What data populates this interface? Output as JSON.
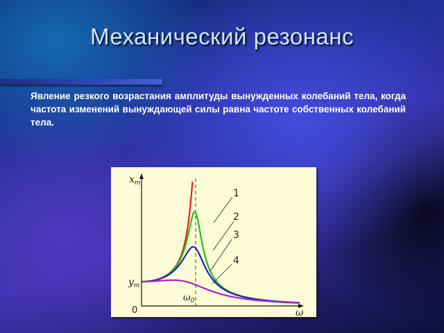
{
  "slide": {
    "title": "Механический резонанс",
    "definition": "Явление резкого возрастания амплитуды вынужденных колебаний тела, когда частота изменений  вынуждающей силы равна частоте собственных колебаний тела."
  },
  "chart_data": {
    "type": "line",
    "y_axis_label": "x",
    "y_axis_label_subscript": "m",
    "x_axis_label": "ω",
    "origin_label": "0",
    "y_marker_label": "y",
    "y_marker_label_subscript": "m",
    "resonance_label": "ω",
    "resonance_label_subscript": "0",
    "series": [
      {
        "name": "1",
        "color": "#ee1c1c"
      },
      {
        "name": "2",
        "color": "#19c419"
      },
      {
        "name": "3",
        "color": "#2020c0"
      },
      {
        "name": "4",
        "color": "#b020c8"
      }
    ]
  }
}
